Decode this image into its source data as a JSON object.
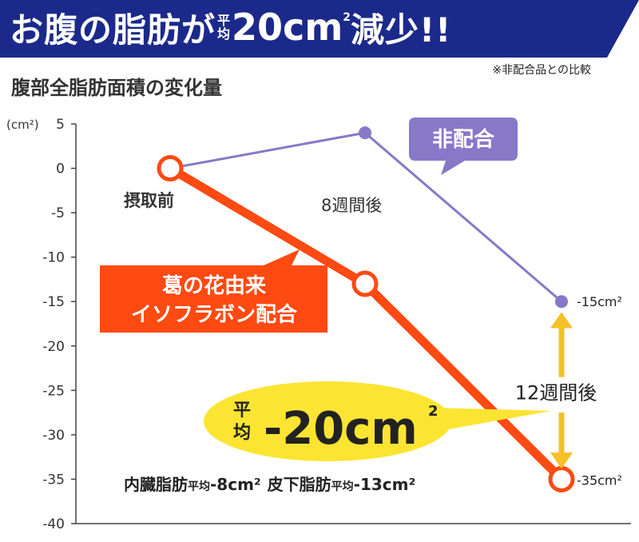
{
  "header": {
    "title_part1": "お腹の脂肪が",
    "title_small_top": "平",
    "title_small_bottom": "均",
    "title_value": "20cm",
    "title_superscript": "2",
    "title_part2": "減少!!",
    "color_bg": "#1b2a8a"
  },
  "note": "※非配合品との比較",
  "subtitle": "腹部全脂肪面積の変化量",
  "chart_data": {
    "type": "line",
    "y_unit_label": "(cm²)",
    "ylim": [
      -40,
      5
    ],
    "yticks": [
      5,
      0,
      -5,
      -10,
      -15,
      -20,
      -25,
      -30,
      -35,
      -40
    ],
    "x_labels": [
      "摂取前",
      "8週間後"
    ],
    "series": [
      {
        "name": "非配合",
        "color": "#8878c8",
        "values": [
          0,
          4,
          -15
        ],
        "end_label": "-15cm²"
      },
      {
        "name": "葛の花由来\nイソフラボン配合",
        "color": "#ff4a12",
        "values": [
          0,
          -13,
          -35
        ],
        "end_label": "-35cm²"
      }
    ],
    "annotations": {
      "period_label": "12週間後",
      "bubble_top": "平",
      "bubble_bottom": "均",
      "bubble_value": "-20cm",
      "bubble_sup": "2",
      "breakdown": "内臓脂肪平均-8cm² 皮下脂肪平均-13cm²",
      "breakdown_parts": [
        "内臓脂肪",
        "平均",
        "-8cm²",
        "皮下脂肪",
        "平均",
        "-13cm²"
      ]
    }
  }
}
